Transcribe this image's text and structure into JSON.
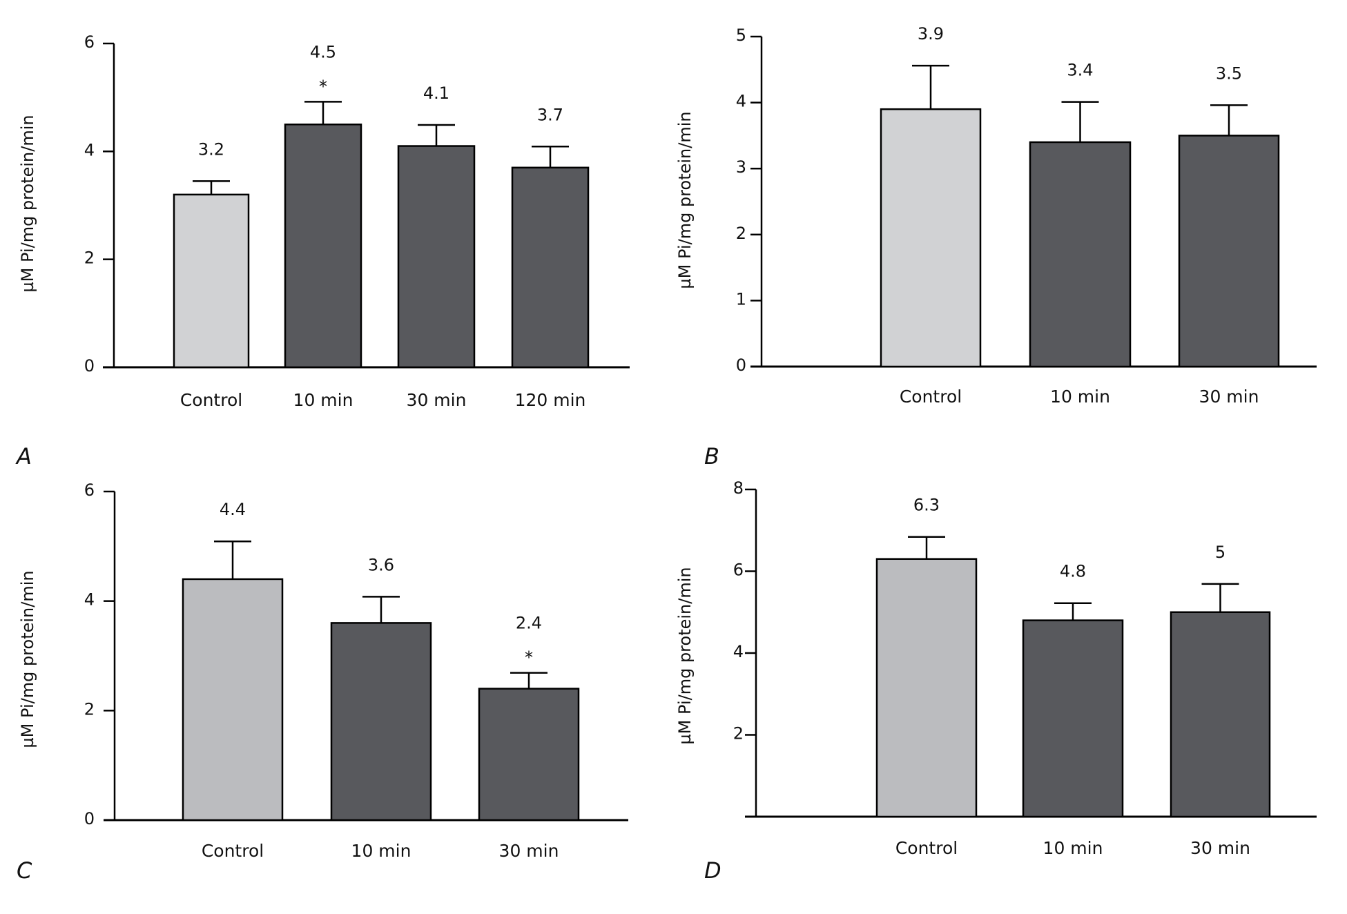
{
  "figure": {
    "colors": {
      "control_light": "#d1d2d4",
      "control_medium": "#bbbcbf",
      "treatment_dark": "#58595d",
      "axis": "#000000"
    }
  },
  "chart_data": [
    {
      "panel": "A",
      "type": "bar",
      "title": "",
      "xlabel": "",
      "ylabel": "µM Pi/mg protein/min",
      "ylim": [
        0,
        6
      ],
      "yticks": [
        0,
        2,
        4,
        6
      ],
      "categories": [
        "Control",
        "10 min",
        "30 min",
        "120 min"
      ],
      "values": [
        3.2,
        4.5,
        4.1,
        3.7
      ],
      "error_upper": [
        3.45,
        4.92,
        4.49,
        4.09
      ],
      "data_labels": [
        "3.2",
        "4.5",
        "4.1",
        "3.7"
      ],
      "significance": [
        "",
        "*",
        "",
        ""
      ],
      "bar_colors": [
        "control_light",
        "treatment_dark",
        "treatment_dark",
        "treatment_dark"
      ],
      "grid": false
    },
    {
      "panel": "B",
      "type": "bar",
      "title": "",
      "xlabel": "",
      "ylabel": "µM Pi/mg protein/min",
      "ylim": [
        0,
        5
      ],
      "yticks": [
        0,
        1,
        2,
        3,
        4,
        5
      ],
      "categories": [
        "Control",
        "10 min",
        "30 min"
      ],
      "values": [
        3.9,
        3.4,
        3.5
      ],
      "error_upper": [
        4.56,
        4.01,
        3.96
      ],
      "data_labels": [
        "3.9",
        "3.4",
        "3.5"
      ],
      "significance": [
        "",
        "",
        ""
      ],
      "bar_colors": [
        "control_light",
        "treatment_dark",
        "treatment_dark"
      ],
      "grid": false
    },
    {
      "panel": "C",
      "type": "bar",
      "title": "",
      "xlabel": "",
      "ylabel": "µM Pi/mg protein/min",
      "ylim": [
        0,
        6
      ],
      "yticks": [
        0,
        2,
        4,
        6
      ],
      "categories": [
        "Control",
        "10 min",
        "30 min"
      ],
      "values": [
        4.4,
        3.6,
        2.4
      ],
      "error_upper": [
        5.09,
        4.08,
        2.69
      ],
      "data_labels": [
        "4.4",
        "3.6",
        "2.4"
      ],
      "significance": [
        "",
        "",
        "*"
      ],
      "bar_colors": [
        "control_medium",
        "treatment_dark",
        "treatment_dark"
      ],
      "grid": false
    },
    {
      "panel": "D",
      "type": "bar",
      "title": "",
      "xlabel": "",
      "ylabel": "µM Pi/mg protein/min",
      "ylim": [
        0,
        8
      ],
      "yticks": [
        2,
        4,
        6,
        8
      ],
      "categories": [
        "Control",
        "10 min",
        "30 min"
      ],
      "values": [
        6.3,
        4.8,
        5
      ],
      "error_upper": [
        6.84,
        5.22,
        5.69
      ],
      "data_labels": [
        "6.3",
        "4.8",
        "5"
      ],
      "significance": [
        "",
        "",
        ""
      ],
      "bar_colors": [
        "control_medium",
        "treatment_dark",
        "treatment_dark"
      ],
      "grid": false
    }
  ]
}
